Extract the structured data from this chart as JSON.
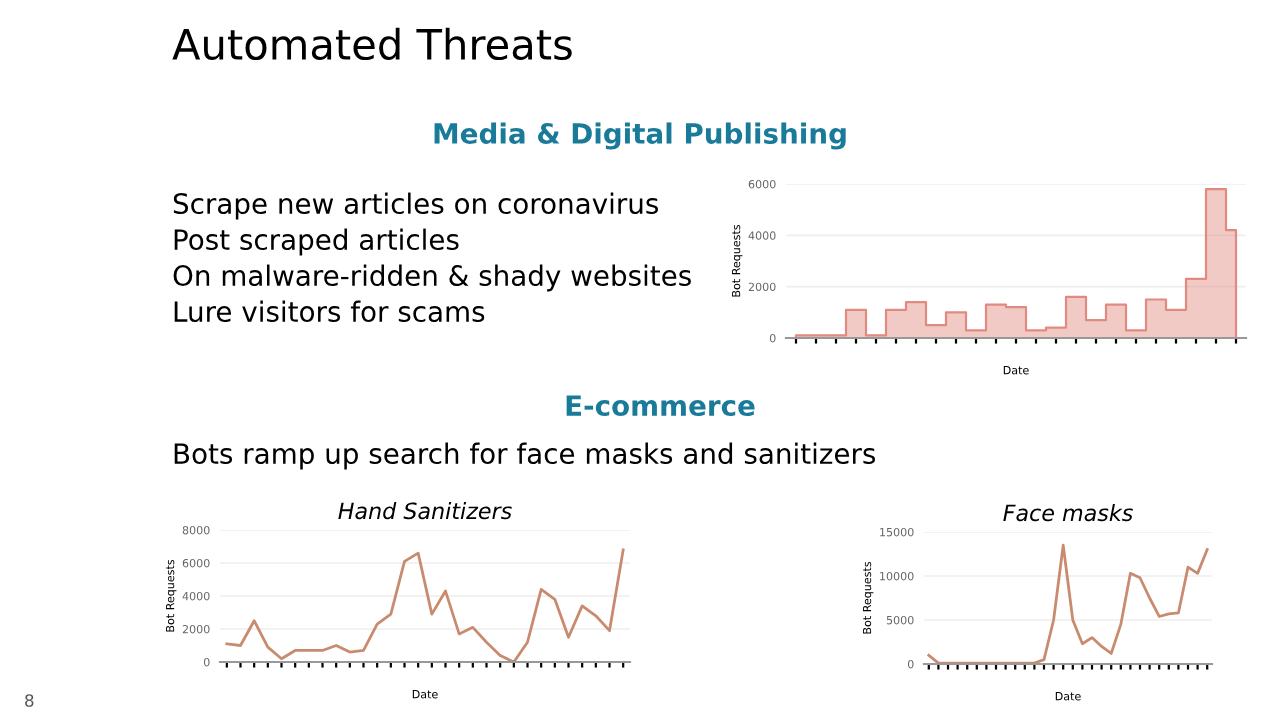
{
  "chart_data": [
    {
      "type": "other",
      "title": "Automated Threats",
      "annotations": [
        "Media & Digital Publishing",
        "Scrape new articles on coronavirus",
        "Post scraped articles",
        "On malware-ridden & shady websites",
        "Lure visitors for scams",
        "E-commerce",
        "Bots ramp up search for face masks and sanitizers",
        "8"
      ]
    },
    {
      "type": "area",
      "xlabel": "Date",
      "ylabel": "Bot Requests",
      "categories": [
        null,
        null,
        null,
        null,
        null,
        null,
        null,
        null,
        null,
        null,
        null,
        null,
        null,
        null,
        null,
        null,
        null,
        null,
        null,
        null,
        null,
        null,
        null
      ],
      "series": [
        {
          "color": "#e08a80",
          "values": [
            100,
            100,
            100,
            1100,
            100,
            1100,
            1400,
            500,
            1000,
            300,
            1300,
            1200,
            300,
            400,
            1600,
            700,
            1300,
            300,
            1500,
            1100,
            2300,
            5800,
            4200
          ]
        }
      ],
      "ylim": [
        0,
        6000
      ],
      "yticks": [
        0,
        2000,
        4000,
        6000
      ],
      "grid": "y",
      "tick_labels": "y"
    },
    {
      "type": "line",
      "title": "Hand Sanitizers",
      "xlabel": "Date",
      "ylabel": "Bot Requests",
      "categories": [
        null,
        null,
        null,
        null,
        null,
        null,
        null,
        null,
        null,
        null,
        null,
        null,
        null,
        null,
        null,
        null,
        null,
        null,
        null,
        null,
        null,
        null,
        null,
        null,
        null,
        null,
        null,
        null,
        null,
        null
      ],
      "series": [
        {
          "color": "#c98b6f",
          "values": [
            1100,
            1000,
            2500,
            900,
            200,
            700,
            700,
            700,
            1000,
            600,
            700,
            2300,
            2900,
            6100,
            6600,
            2900,
            4300,
            1700,
            2100,
            1200,
            400,
            0,
            1200,
            4400,
            3800,
            1500,
            3400,
            2800,
            1900,
            6800
          ]
        }
      ],
      "ylim": [
        0,
        8000
      ],
      "yticks": [
        0,
        2000,
        4000,
        6000,
        8000
      ],
      "grid": "y",
      "tick_labels": "y"
    },
    {
      "type": "line",
      "title": "Face masks",
      "xlabel": "Date",
      "ylabel": "Bot Requests",
      "categories": [
        null,
        null,
        null,
        null,
        null,
        null,
        null,
        null,
        null,
        null,
        null,
        null,
        null,
        null,
        null,
        null,
        null,
        null,
        null,
        null,
        null,
        null,
        null,
        null,
        null,
        null,
        null,
        null,
        null,
        null
      ],
      "series": [
        {
          "color": "#c98b6f",
          "values": [
            1000,
            100,
            100,
            100,
            100,
            100,
            100,
            100,
            100,
            100,
            100,
            100,
            500,
            5000,
            13500,
            5000,
            2300,
            3000,
            2000,
            1200,
            4500,
            10300,
            9800,
            7500,
            5400,
            5700,
            5800,
            11000,
            10300,
            13000
          ]
        }
      ],
      "ylim": [
        0,
        15000
      ],
      "yticks": [
        0,
        5000,
        10000,
        15000
      ],
      "grid": "y",
      "tick_labels": "y"
    }
  ]
}
